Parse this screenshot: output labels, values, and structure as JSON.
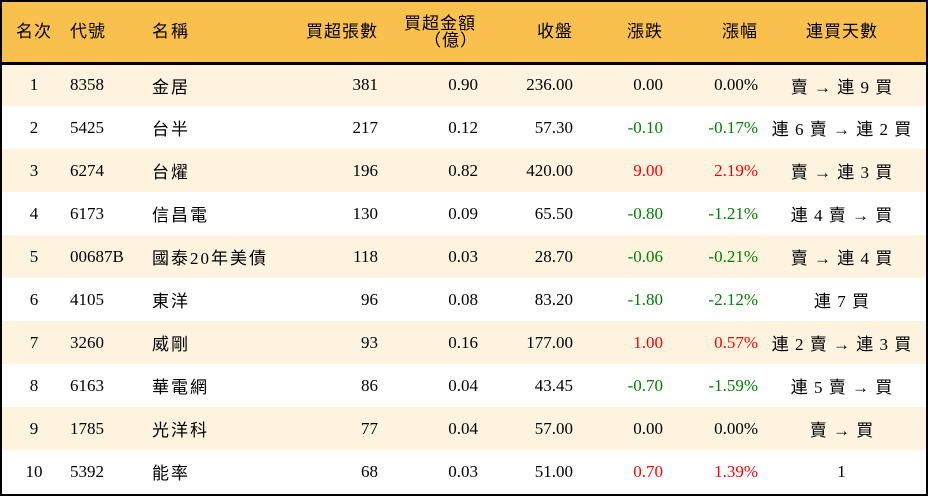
{
  "colors": {
    "header_bg": "#F9C04D",
    "row_odd_bg": "#FDF3DF",
    "row_even_bg": "#FFFFFF",
    "up": "#FF0000",
    "down": "#008000",
    "border": "#000000"
  },
  "table": {
    "headers": {
      "rank": "名次",
      "code": "代號",
      "name": "名稱",
      "net_buy_lots": "買超張數",
      "net_buy_amount_line1": "買超金額",
      "net_buy_amount_line2": "（億）",
      "close": "收盤",
      "change": "漲跌",
      "change_pct": "漲幅",
      "consecutive_days": "連買天數"
    },
    "rows": [
      {
        "rank": "1",
        "code": "8358",
        "name": "金居",
        "lots": "381",
        "amount": "0.90",
        "close": "236.00",
        "change": "0.00",
        "pct": "0.00%",
        "trend": "flat",
        "days": "賣 → 連 9 買"
      },
      {
        "rank": "2",
        "code": "5425",
        "name": "台半",
        "lots": "217",
        "amount": "0.12",
        "close": "57.30",
        "change": "-0.10",
        "pct": "-0.17%",
        "trend": "down",
        "days": "連 6 賣 → 連 2 買"
      },
      {
        "rank": "3",
        "code": "6274",
        "name": "台燿",
        "lots": "196",
        "amount": "0.82",
        "close": "420.00",
        "change": "9.00",
        "pct": "2.19%",
        "trend": "up",
        "days": "賣 → 連 3 買"
      },
      {
        "rank": "4",
        "code": "6173",
        "name": "信昌電",
        "lots": "130",
        "amount": "0.09",
        "close": "65.50",
        "change": "-0.80",
        "pct": "-1.21%",
        "trend": "down",
        "days": "連 4 賣 → 買"
      },
      {
        "rank": "5",
        "code": "00687B",
        "name": "國泰20年美債",
        "lots": "118",
        "amount": "0.03",
        "close": "28.70",
        "change": "-0.06",
        "pct": "-0.21%",
        "trend": "down",
        "days": "賣 → 連 4 買"
      },
      {
        "rank": "6",
        "code": "4105",
        "name": "東洋",
        "lots": "96",
        "amount": "0.08",
        "close": "83.20",
        "change": "-1.80",
        "pct": "-2.12%",
        "trend": "down",
        "days": "連 7 買"
      },
      {
        "rank": "7",
        "code": "3260",
        "name": "威剛",
        "lots": "93",
        "amount": "0.16",
        "close": "177.00",
        "change": "1.00",
        "pct": "0.57%",
        "trend": "up",
        "days": "連 2 賣 → 連 3 買"
      },
      {
        "rank": "8",
        "code": "6163",
        "name": "華電網",
        "lots": "86",
        "amount": "0.04",
        "close": "43.45",
        "change": "-0.70",
        "pct": "-1.59%",
        "trend": "down",
        "days": "連 5 賣 → 買"
      },
      {
        "rank": "9",
        "code": "1785",
        "name": "光洋科",
        "lots": "77",
        "amount": "0.04",
        "close": "57.00",
        "change": "0.00",
        "pct": "0.00%",
        "trend": "flat",
        "days": "賣 → 買"
      },
      {
        "rank": "10",
        "code": "5392",
        "name": "能率",
        "lots": "68",
        "amount": "0.03",
        "close": "51.00",
        "change": "0.70",
        "pct": "1.39%",
        "trend": "up",
        "days": "1"
      }
    ]
  }
}
